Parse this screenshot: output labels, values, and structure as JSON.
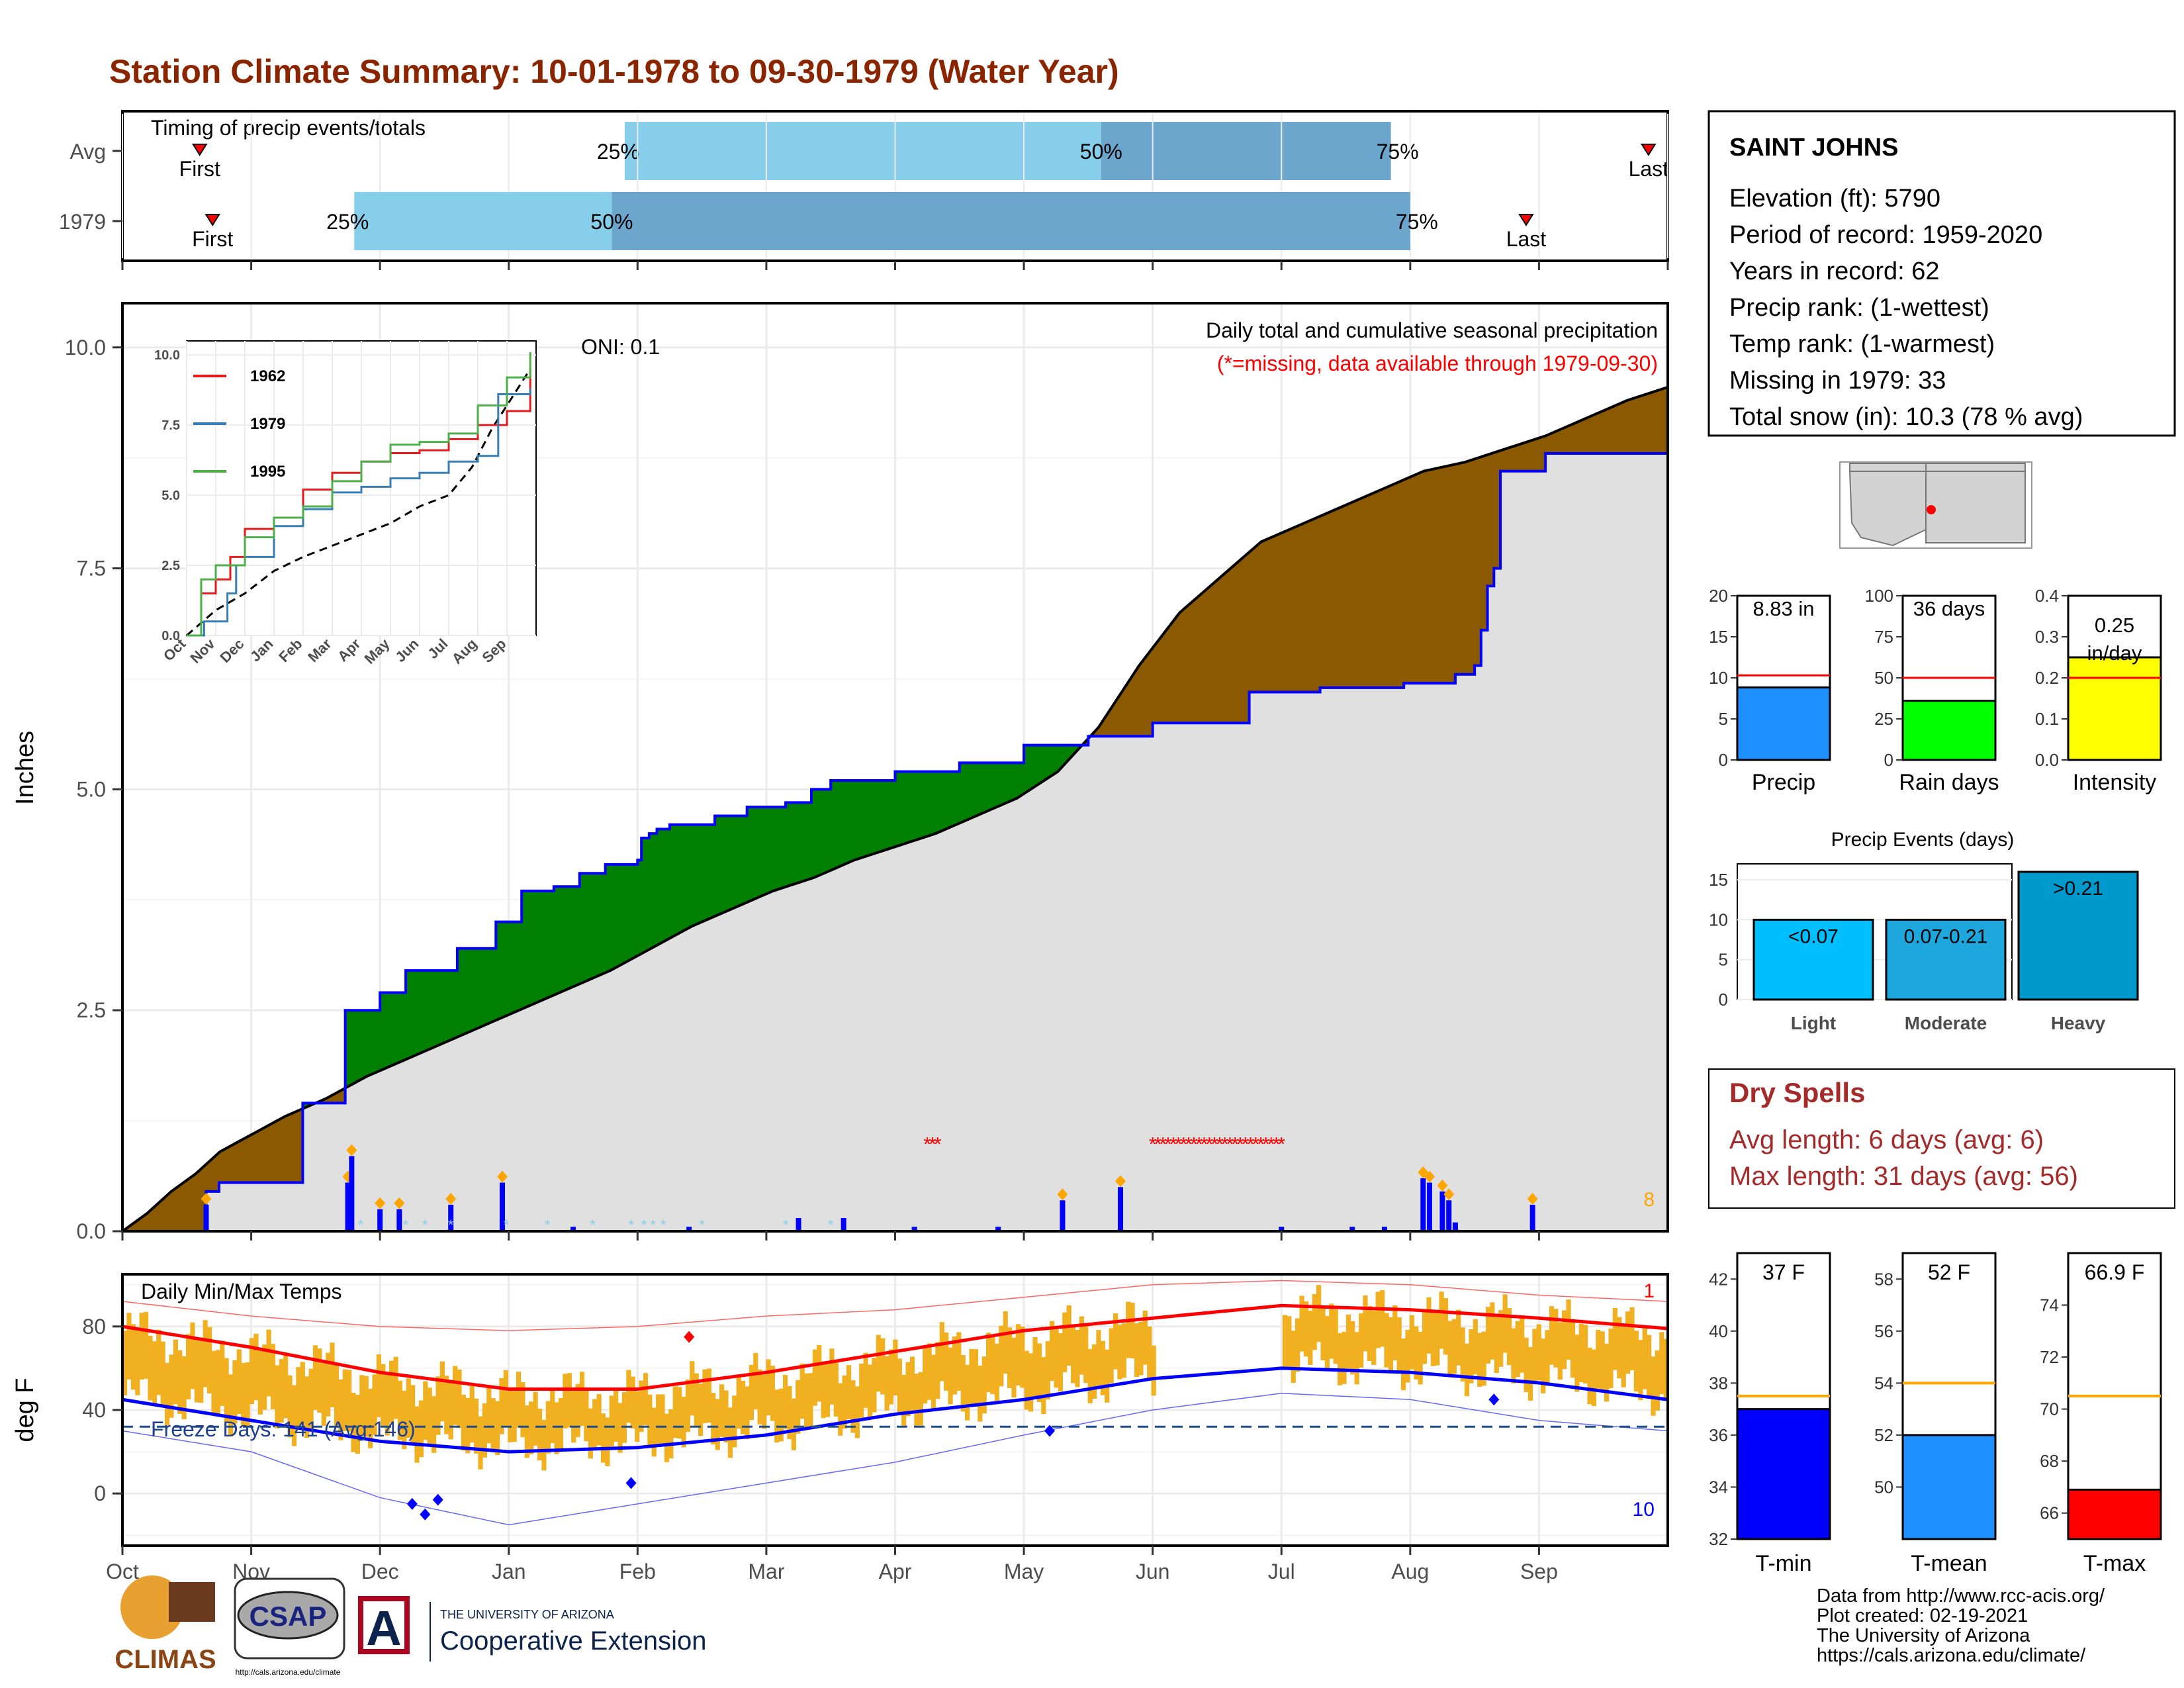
{
  "title": "Station Climate Summary: 10-01-1978 to 09-30-1979 (Water Year)",
  "colors": {
    "title": "#8B2500",
    "q_light": "#87CEEB",
    "q_dark": "#6CA6CD",
    "green": "#008000",
    "brown": "#8B5A00",
    "gray_fill": "#E0E0E0",
    "blue_line": "#0000FF",
    "bar_blue": "#0000FF",
    "orange": "#FFA500",
    "temp_bar": "#F0B020",
    "red": "#FF0000",
    "dry_red": "#A52A2A"
  },
  "timing": {
    "title": "Timing of precip events/totals",
    "rows": [
      {
        "label": "Avg",
        "first_label": "First",
        "last_label": "Last",
        "first_month": 0.6,
        "last_month": 11.85,
        "q25": 3.9,
        "q50": 7.6,
        "q75": 9.85,
        "q25_label": "25%",
        "q50_label": "50%",
        "q75_label": "75%"
      },
      {
        "label": "1979",
        "first_label": "First",
        "last_label": "Last",
        "first_month": 0.7,
        "last_month": 10.9,
        "q25": 1.8,
        "q50": 3.8,
        "q75": 10.0,
        "q25_label": "25%",
        "q50_label": "50%",
        "q75_label": "75%"
      }
    ]
  },
  "chart_data": [
    {
      "type": "area",
      "name": "precip",
      "subtitle": "Daily total and cumulative seasonal precipitation",
      "note": "(*=missing, data available through 1979-09-30)",
      "oni": "ONI: 0.1",
      "ylabel": "Inches",
      "ylim": [
        0,
        10.5
      ],
      "yticks": [
        "0.0",
        "2.5",
        "5.0",
        "7.5",
        "10.0"
      ],
      "months": [
        "Oct",
        "Nov",
        "Dec",
        "Jan",
        "Feb",
        "Mar",
        "Apr",
        "May",
        "Jun",
        "Jul",
        "Aug",
        "Sep"
      ],
      "corner_value": "8",
      "avg_cumulative": [
        [
          0,
          0
        ],
        [
          0.3,
          0.2
        ],
        [
          0.6,
          0.45
        ],
        [
          0.9,
          0.65
        ],
        [
          1.2,
          0.9
        ],
        [
          1.5,
          1.05
        ],
        [
          1.8,
          1.2
        ],
        [
          2.0,
          1.3
        ],
        [
          2.5,
          1.5
        ],
        [
          3.0,
          1.75
        ],
        [
          3.5,
          1.95
        ],
        [
          4.0,
          2.15
        ],
        [
          4.5,
          2.35
        ],
        [
          5.0,
          2.55
        ],
        [
          5.5,
          2.75
        ],
        [
          6.0,
          2.95
        ],
        [
          6.5,
          3.2
        ],
        [
          7.0,
          3.45
        ],
        [
          7.5,
          3.65
        ],
        [
          8.0,
          3.85
        ],
        [
          8.5,
          4.0
        ],
        [
          9.0,
          4.2
        ],
        [
          9.5,
          4.35
        ],
        [
          10.0,
          4.5
        ],
        [
          10.5,
          4.7
        ],
        [
          11.0,
          4.9
        ],
        [
          11.5,
          5.2
        ],
        [
          12.0,
          5.7
        ],
        [
          12.5,
          6.4
        ],
        [
          13.0,
          7.0
        ],
        [
          13.5,
          7.4
        ],
        [
          14.0,
          7.8
        ],
        [
          14.5,
          8.0
        ],
        [
          15.0,
          8.2
        ],
        [
          15.5,
          8.4
        ],
        [
          16.0,
          8.6
        ],
        [
          16.5,
          8.7
        ],
        [
          17.0,
          8.85
        ],
        [
          17.5,
          9.0
        ],
        [
          18.0,
          9.2
        ],
        [
          18.5,
          9.4
        ],
        [
          19.0,
          9.55
        ]
      ],
      "cumulative_1979_steps": [
        [
          0,
          0
        ],
        [
          0.65,
          0.45
        ],
        [
          0.75,
          0.55
        ],
        [
          1.4,
          1.45
        ],
        [
          1.73,
          2.5
        ],
        [
          2.0,
          2.7
        ],
        [
          2.2,
          2.95
        ],
        [
          2.6,
          3.2
        ],
        [
          2.9,
          3.5
        ],
        [
          3.1,
          3.85
        ],
        [
          3.35,
          3.9
        ],
        [
          3.55,
          4.05
        ],
        [
          3.75,
          4.15
        ],
        [
          4.0,
          4.2
        ],
        [
          4.03,
          4.45
        ],
        [
          4.09,
          4.5
        ],
        [
          4.15,
          4.55
        ],
        [
          4.25,
          4.6
        ],
        [
          4.6,
          4.7
        ],
        [
          4.85,
          4.8
        ],
        [
          5.15,
          4.85
        ],
        [
          5.35,
          5.0
        ],
        [
          5.5,
          5.1
        ],
        [
          6.0,
          5.2
        ],
        [
          6.5,
          5.3
        ],
        [
          7.0,
          5.5
        ],
        [
          7.5,
          5.6
        ],
        [
          8.0,
          5.75
        ],
        [
          8.75,
          6.1
        ],
        [
          9.3,
          6.15
        ],
        [
          9.95,
          6.2
        ],
        [
          10.25,
          6.2
        ],
        [
          10.35,
          6.3
        ],
        [
          10.5,
          6.4
        ],
        [
          10.55,
          6.8
        ],
        [
          10.6,
          7.3
        ],
        [
          10.65,
          7.5
        ],
        [
          10.7,
          8.6
        ],
        [
          10.9,
          8.6
        ],
        [
          11.05,
          8.8
        ],
        [
          12.0,
          8.8
        ]
      ],
      "daily_events_month": [
        0.65,
        1.75,
        1.78,
        2.0,
        2.15,
        2.55,
        2.95,
        3.5,
        4.4,
        5.25,
        5.6,
        6.15,
        6.8,
        7.3,
        7.75,
        9.0,
        9.55,
        9.8,
        10.1,
        10.15,
        10.25,
        10.3,
        10.35,
        10.95
      ],
      "daily_events_in": [
        0.3,
        0.55,
        0.85,
        0.25,
        0.25,
        0.3,
        0.55,
        0.05,
        0.05,
        0.15,
        0.15,
        0.05,
        0.05,
        0.35,
        0.5,
        0.05,
        0.05,
        0.05,
        0.6,
        0.55,
        0.45,
        0.35,
        0.1,
        0.3
      ],
      "missing_ranges_month": [
        [
          6.25,
          6.35
        ],
        [
          8.0,
          9.0
        ]
      ],
      "inset": {
        "yticks": [
          "0.0",
          "2.5",
          "5.0",
          "7.5",
          "10.0"
        ],
        "months": [
          "Oct",
          "Nov",
          "Dec",
          "Jan",
          "Feb",
          "Mar",
          "Apr",
          "May",
          "Jun",
          "Jul",
          "Aug",
          "Sep"
        ],
        "series": [
          {
            "name": "1962",
            "color": "#E41A1C",
            "points": [
              [
                0,
                0
              ],
              [
                0.5,
                1.5
              ],
              [
                1,
                2
              ],
              [
                1.5,
                2.8
              ],
              [
                2,
                3.8
              ],
              [
                3,
                4.2
              ],
              [
                4,
                5.2
              ],
              [
                5,
                5.8
              ],
              [
                6,
                6.2
              ],
              [
                7,
                6.5
              ],
              [
                8,
                6.6
              ],
              [
                9,
                7
              ],
              [
                10,
                7.5
              ],
              [
                11,
                8
              ],
              [
                11.8,
                9.5
              ]
            ]
          },
          {
            "name": "1979",
            "color": "#377EB8",
            "points": [
              [
                0,
                0
              ],
              [
                0.6,
                0.5
              ],
              [
                1.4,
                1.5
              ],
              [
                1.7,
                2.5
              ],
              [
                2,
                2.8
              ],
              [
                3,
                3.9
              ],
              [
                4,
                4.5
              ],
              [
                5,
                5.1
              ],
              [
                6,
                5.3
              ],
              [
                7,
                5.6
              ],
              [
                8,
                5.8
              ],
              [
                9,
                6.2
              ],
              [
                10,
                6.4
              ],
              [
                10.7,
                8.6
              ],
              [
                11.8,
                8.8
              ]
            ]
          },
          {
            "name": "1995",
            "color": "#4DAF4A",
            "points": [
              [
                0,
                0
              ],
              [
                0.5,
                2
              ],
              [
                1,
                2.5
              ],
              [
                2,
                3.5
              ],
              [
                3,
                4.2
              ],
              [
                4,
                4.6
              ],
              [
                5,
                5.5
              ],
              [
                6,
                6.2
              ],
              [
                7,
                6.8
              ],
              [
                8,
                6.9
              ],
              [
                9,
                7.2
              ],
              [
                10,
                8.2
              ],
              [
                11,
                9.2
              ],
              [
                11.8,
                10.1
              ]
            ]
          }
        ],
        "avg_points": [
          [
            0,
            0
          ],
          [
            1,
            0.9
          ],
          [
            2,
            1.5
          ],
          [
            3,
            2.3
          ],
          [
            4,
            2.8
          ],
          [
            5,
            3.2
          ],
          [
            6,
            3.6
          ],
          [
            7,
            4.0
          ],
          [
            8,
            4.6
          ],
          [
            9,
            5.0
          ],
          [
            9.8,
            6.0
          ],
          [
            10.5,
            7.4
          ],
          [
            11,
            8.2
          ],
          [
            11.8,
            9.5
          ]
        ]
      }
    },
    {
      "type": "line",
      "name": "temps",
      "title": "Daily Min/Max Temps",
      "ylabel": "deg F",
      "ylim": [
        -25,
        105
      ],
      "yticks": [
        "0",
        "40",
        "80"
      ],
      "freeze_label": "Freeze Days: 141 (Avg:146)",
      "freeze_line": 32,
      "corner_top": "1",
      "corner_bottom": "10",
      "avg_max": [
        [
          0,
          80
        ],
        [
          1,
          70
        ],
        [
          2,
          58
        ],
        [
          3,
          50
        ],
        [
          4,
          50
        ],
        [
          5,
          58
        ],
        [
          6,
          68
        ],
        [
          7,
          78
        ],
        [
          8,
          84
        ],
        [
          9,
          90
        ],
        [
          10,
          88
        ],
        [
          11,
          84
        ],
        [
          12,
          79
        ]
      ],
      "avg_min": [
        [
          0,
          45
        ],
        [
          1,
          35
        ],
        [
          2,
          25
        ],
        [
          3,
          20
        ],
        [
          4,
          22
        ],
        [
          5,
          28
        ],
        [
          6,
          38
        ],
        [
          7,
          45
        ],
        [
          8,
          55
        ],
        [
          9,
          60
        ],
        [
          10,
          58
        ],
        [
          11,
          53
        ],
        [
          12,
          45
        ]
      ],
      "record_max": [
        [
          0,
          92
        ],
        [
          1,
          85
        ],
        [
          2,
          80
        ],
        [
          3,
          78
        ],
        [
          4,
          80
        ],
        [
          5,
          85
        ],
        [
          6,
          88
        ],
        [
          7,
          94
        ],
        [
          8,
          100
        ],
        [
          9,
          102
        ],
        [
          10,
          100
        ],
        [
          11,
          95
        ],
        [
          12,
          92
        ]
      ],
      "record_min": [
        [
          0,
          30
        ],
        [
          1,
          20
        ],
        [
          2,
          -2
        ],
        [
          3,
          -15
        ],
        [
          4,
          -5
        ],
        [
          5,
          5
        ],
        [
          6,
          15
        ],
        [
          7,
          28
        ],
        [
          8,
          40
        ],
        [
          9,
          48
        ],
        [
          10,
          45
        ],
        [
          11,
          35
        ],
        [
          12,
          30
        ]
      ],
      "missing_month": [
        8.0,
        9.0
      ]
    }
  ],
  "station": {
    "name": "SAINT JOHNS",
    "lines": [
      "Elevation (ft): 5790",
      "Period of record: 1959-2020",
      "Years in record: 62",
      "Precip rank:  (1-wettest)",
      "Temp rank:  (1-warmest)",
      "Missing in 1979: 33",
      "Total snow (in): 10.3 (78 % avg)"
    ]
  },
  "mini_bars": [
    {
      "label": "Precip",
      "value_label": "8.83 in",
      "value": 8.83,
      "avg": 10.3,
      "max": 20,
      "ticks": [
        "0",
        "5",
        "10",
        "15",
        "20"
      ],
      "color": "#1E90FF"
    },
    {
      "label": "Rain days",
      "value_label": "36 days",
      "value": 36,
      "avg": 50,
      "max": 100,
      "ticks": [
        "0",
        "25",
        "50",
        "75",
        "100"
      ],
      "color": "#00FF00"
    },
    {
      "label": "Intensity",
      "value_label": "0.25 in/day",
      "value": 0.25,
      "avg": 0.2,
      "max": 0.4,
      "ticks": [
        "0.0",
        "0.1",
        "0.2",
        "0.3",
        "0.4"
      ],
      "color": "#FFFF00"
    }
  ],
  "precip_events": {
    "title": "Precip Events (days)",
    "ticks": [
      "0",
      "5",
      "10",
      "15"
    ],
    "max": 17,
    "bars": [
      {
        "category": "Light",
        "label": "<0.07",
        "value": 10,
        "color": "#00BFFF"
      },
      {
        "category": "Moderate",
        "label": "0.07-0.21",
        "value": 10,
        "color": "#1EA7DC"
      },
      {
        "category": "Heavy",
        "label": ">0.21",
        "value": 16,
        "color": "#0099CC"
      }
    ]
  },
  "dry_spells": {
    "title": "Dry Spells",
    "avg_line": "Avg length: 6 days (avg: 6)",
    "max_line": "Max length: 31 days (avg: 56)"
  },
  "temp_bars": [
    {
      "label": "T-min",
      "value_label": "37 F",
      "value": 37,
      "avg": 37.5,
      "min": 32,
      "max": 43,
      "ticks": [
        "32",
        "34",
        "36",
        "38",
        "40",
        "42"
      ],
      "color": "#0000FF"
    },
    {
      "label": "T-mean",
      "value_label": "52 F",
      "value": 52,
      "avg": 54,
      "min": 48,
      "max": 59,
      "ticks": [
        "50",
        "52",
        "54",
        "56",
        "58"
      ],
      "color": "#1E90FF"
    },
    {
      "label": "T-max",
      "value_label": "66.9 F",
      "value": 66.9,
      "avg": 70.5,
      "min": 65,
      "max": 76,
      "ticks": [
        "66",
        "68",
        "70",
        "72",
        "74"
      ],
      "color": "#FF0000"
    }
  ],
  "footer": {
    "lines": [
      "Data from http://www.rcc-acis.org/",
      "Plot created: 02-19-2021",
      "The University of Arizona",
      "https://cals.arizona.edu/climate/"
    ],
    "logo_climas": "CLIMAS",
    "logo_csap": "CSAP",
    "logo_csap_url": "http://cals.arizona.edu/climate",
    "ua_small": "THE UNIVERSITY OF ARIZONA",
    "ua_big": "Cooperative Extension",
    "ua_letter": "A"
  }
}
